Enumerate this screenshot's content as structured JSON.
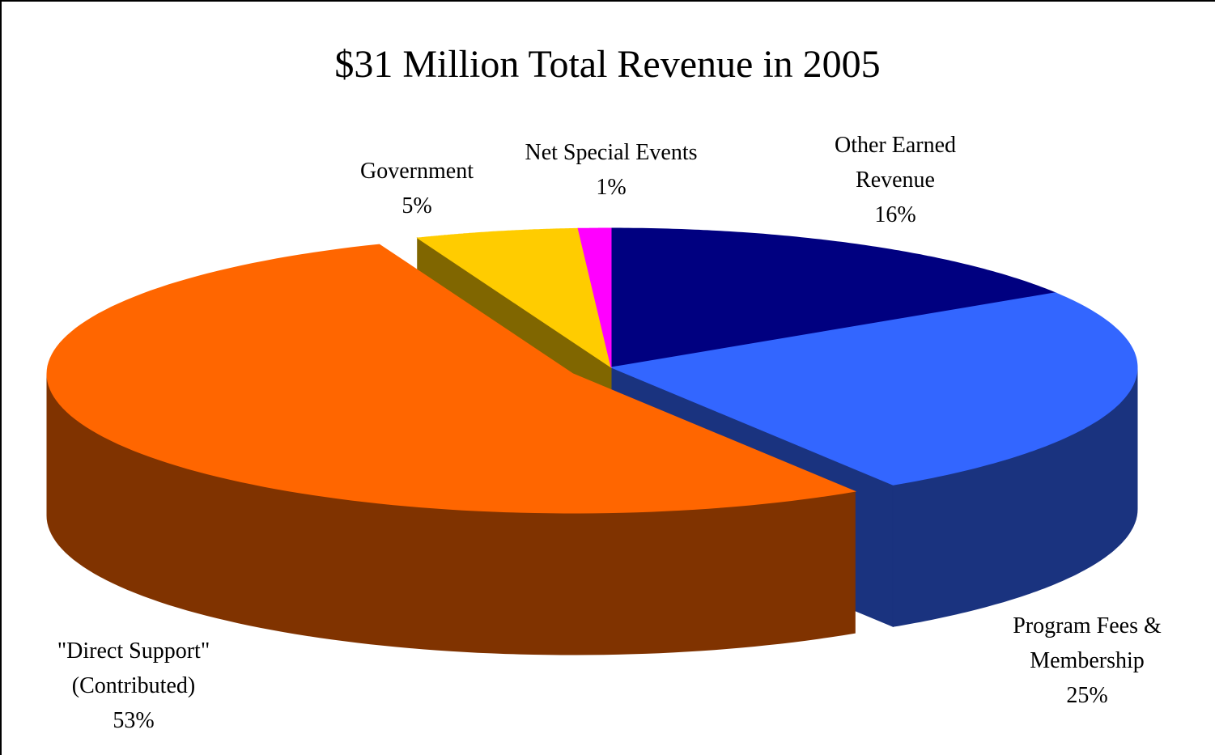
{
  "chart_data": {
    "type": "pie",
    "title": "$31 Million Total Revenue in 2005",
    "three_d": true,
    "exploded_slice": "\"Direct Support\" (Contributed)",
    "series": [
      {
        "name": "",
        "slices": [
          {
            "label_lines": [
              "Other Earned",
              "Revenue"
            ],
            "label": "Other Earned Revenue",
            "value": 16,
            "value_label": "16%",
            "color": "#000080",
            "side_color": "#000058"
          },
          {
            "label_lines": [
              "Program Fees &",
              "Membership"
            ],
            "label": "Program Fees & Membership",
            "value": 25,
            "value_label": "25%",
            "color": "#3366FF",
            "side_color": "#1A337F"
          },
          {
            "label_lines": [
              "\"Direct Support\"",
              "(Contributed)"
            ],
            "label": "\"Direct Support\" (Contributed)",
            "value": 53,
            "value_label": "53%",
            "color": "#FF6600",
            "side_color": "#803300"
          },
          {
            "label_lines": [
              "Government"
            ],
            "label": "Government",
            "value": 5,
            "value_label": "5%",
            "color": "#FFCC00",
            "side_color": "#806600"
          },
          {
            "label_lines": [
              "Net Special Events"
            ],
            "label": "Net Special Events",
            "value": 1,
            "value_label": "1%",
            "color": "#FF00FF",
            "side_color": "#800080"
          }
        ]
      }
    ]
  }
}
